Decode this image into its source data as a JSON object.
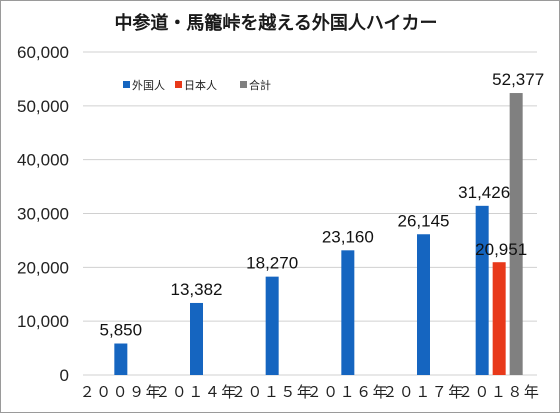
{
  "chart_data": {
    "type": "bar",
    "title": "中参道・馬籠峠を越える外国人ハイカー",
    "categories": [
      "２００９年",
      "２０１４年",
      "２０１５年",
      "２０１６年",
      "２０１７年",
      "２０１８年"
    ],
    "series": [
      {
        "name": "外国人",
        "color": "#1565c0",
        "values": [
          5850,
          13382,
          18270,
          23160,
          26145,
          31426
        ],
        "labels": [
          "5,850",
          "13,382",
          "18,270",
          "23,160",
          "26,145",
          "31,426"
        ]
      },
      {
        "name": "日本人",
        "color": "#e8391a",
        "values": [
          null,
          null,
          null,
          null,
          null,
          20951
        ],
        "labels": [
          null,
          null,
          null,
          null,
          null,
          "20,951"
        ]
      },
      {
        "name": "合計",
        "color": "#808080",
        "values": [
          null,
          null,
          null,
          null,
          null,
          52377
        ],
        "labels": [
          null,
          null,
          null,
          null,
          null,
          "52,377"
        ]
      }
    ],
    "yticks": [
      "0",
      "10,000",
      "20,000",
      "30,000",
      "40,000",
      "50,000",
      "60,000"
    ],
    "ylim": [
      0,
      60000
    ],
    "grid": true,
    "legend_position": "top-left"
  }
}
